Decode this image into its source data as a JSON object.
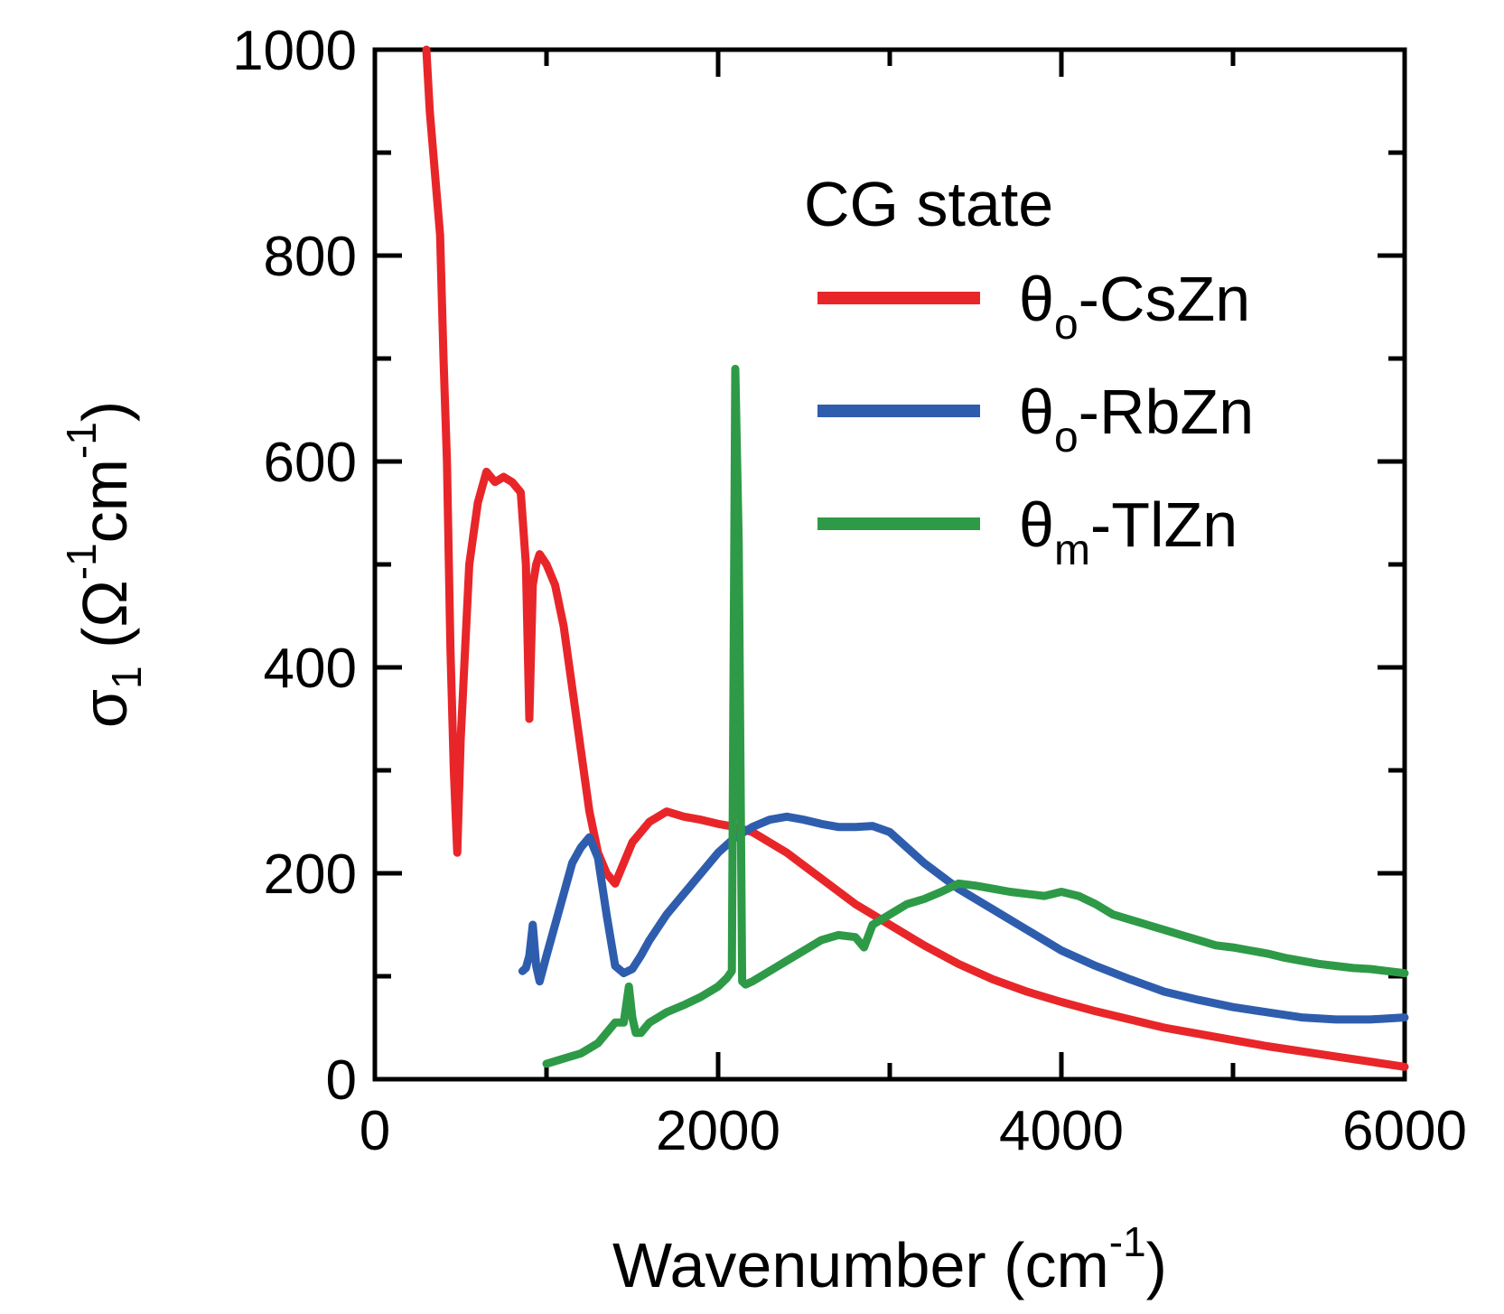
{
  "chart_data": {
    "type": "line",
    "title": "",
    "xlabel": {
      "main": "Wavenumber (cm",
      "sup": "-1",
      "close": ")"
    },
    "ylabel": {
      "sigma": "σ",
      "sub": "1",
      "open": " (Ω",
      "sup1": "-1",
      "cm": "cm",
      "sup2": "-1",
      "close": ")"
    },
    "xlim": [
      0,
      6000
    ],
    "ylim": [
      0,
      1000
    ],
    "x_ticks": [
      "0",
      "2000",
      "4000",
      "6000"
    ],
    "y_ticks": [
      "0",
      "200",
      "400",
      "600",
      "800",
      "1000"
    ],
    "x_tick_values": [
      0,
      2000,
      4000,
      6000
    ],
    "y_tick_values": [
      0,
      200,
      400,
      600,
      800,
      1000
    ],
    "grid": false,
    "legend": {
      "title": "CG state",
      "placement": "top-right",
      "entries": [
        {
          "theta": "θ",
          "sub": "o",
          "name": "-CsZn",
          "color": "#e8262a"
        },
        {
          "theta": "θ",
          "sub": "o",
          "name": "-RbZn",
          "color": "#2f5dae"
        },
        {
          "theta": "θ",
          "sub": "m",
          "name": "-TlZn",
          "color": "#2e9a47"
        }
      ]
    },
    "series": [
      {
        "name": "θo-CsZn",
        "color": "#e8262a",
        "x": [
          300,
          320,
          340,
          360,
          380,
          400,
          420,
          440,
          460,
          480,
          500,
          550,
          600,
          650,
          700,
          750,
          800,
          850,
          880,
          900,
          920,
          940,
          960,
          1000,
          1050,
          1100,
          1150,
          1200,
          1250,
          1300,
          1350,
          1400,
          1500,
          1600,
          1700,
          1800,
          1900,
          2000,
          2100,
          2200,
          2400,
          2600,
          2800,
          3000,
          3200,
          3400,
          3600,
          3800,
          4000,
          4200,
          4400,
          4600,
          4800,
          5000,
          5200,
          5400,
          5600,
          5800,
          6000
        ],
        "y": [
          1000,
          940,
          900,
          860,
          820,
          700,
          600,
          420,
          300,
          220,
          330,
          500,
          560,
          590,
          580,
          585,
          580,
          570,
          500,
          350,
          480,
          500,
          510,
          500,
          480,
          440,
          380,
          320,
          260,
          220,
          200,
          190,
          230,
          250,
          260,
          255,
          252,
          248,
          245,
          240,
          220,
          195,
          170,
          150,
          130,
          112,
          97,
          85,
          75,
          66,
          58,
          50,
          44,
          38,
          32,
          27,
          22,
          17,
          12
        ]
      },
      {
        "name": "θo-RbZn",
        "color": "#2f5dae",
        "x": [
          860,
          880,
          900,
          920,
          940,
          960,
          1000,
          1050,
          1100,
          1150,
          1200,
          1250,
          1300,
          1350,
          1400,
          1450,
          1500,
          1550,
          1600,
          1700,
          1800,
          1900,
          2000,
          2100,
          2200,
          2300,
          2400,
          2500,
          2600,
          2700,
          2800,
          2900,
          3000,
          3200,
          3400,
          3600,
          3800,
          4000,
          4200,
          4400,
          4600,
          4800,
          5000,
          5200,
          5400,
          5600,
          5800,
          6000
        ],
        "y": [
          105,
          108,
          120,
          150,
          110,
          95,
          120,
          150,
          180,
          210,
          225,
          235,
          215,
          160,
          110,
          103,
          107,
          120,
          135,
          160,
          180,
          200,
          220,
          235,
          245,
          252,
          255,
          252,
          248,
          245,
          245,
          246,
          240,
          210,
          185,
          165,
          145,
          125,
          110,
          97,
          85,
          77,
          70,
          65,
          60,
          58,
          58,
          60
        ]
      },
      {
        "name": "θm-TlZn",
        "color": "#2e9a47",
        "x": [
          1000,
          1100,
          1200,
          1300,
          1400,
          1450,
          1480,
          1500,
          1520,
          1550,
          1600,
          1700,
          1800,
          1900,
          2000,
          2050,
          2080,
          2100,
          2120,
          2140,
          2160,
          2200,
          2300,
          2400,
          2500,
          2600,
          2700,
          2800,
          2850,
          2900,
          2950,
          3000,
          3100,
          3200,
          3300,
          3400,
          3500,
          3600,
          3700,
          3800,
          3900,
          4000,
          4100,
          4200,
          4300,
          4400,
          4500,
          4600,
          4700,
          4800,
          4900,
          5000,
          5100,
          5200,
          5300,
          5400,
          5500,
          5600,
          5700,
          5800,
          5900,
          6000
        ],
        "y": [
          15,
          20,
          25,
          35,
          55,
          55,
          90,
          60,
          45,
          45,
          55,
          65,
          72,
          80,
          90,
          98,
          105,
          690,
          520,
          95,
          92,
          95,
          105,
          115,
          125,
          135,
          140,
          138,
          128,
          150,
          155,
          160,
          170,
          175,
          182,
          190,
          188,
          185,
          182,
          180,
          178,
          182,
          178,
          170,
          160,
          155,
          150,
          145,
          140,
          135,
          130,
          128,
          125,
          122,
          118,
          115,
          112,
          110,
          108,
          107,
          105,
          103
        ]
      }
    ]
  }
}
